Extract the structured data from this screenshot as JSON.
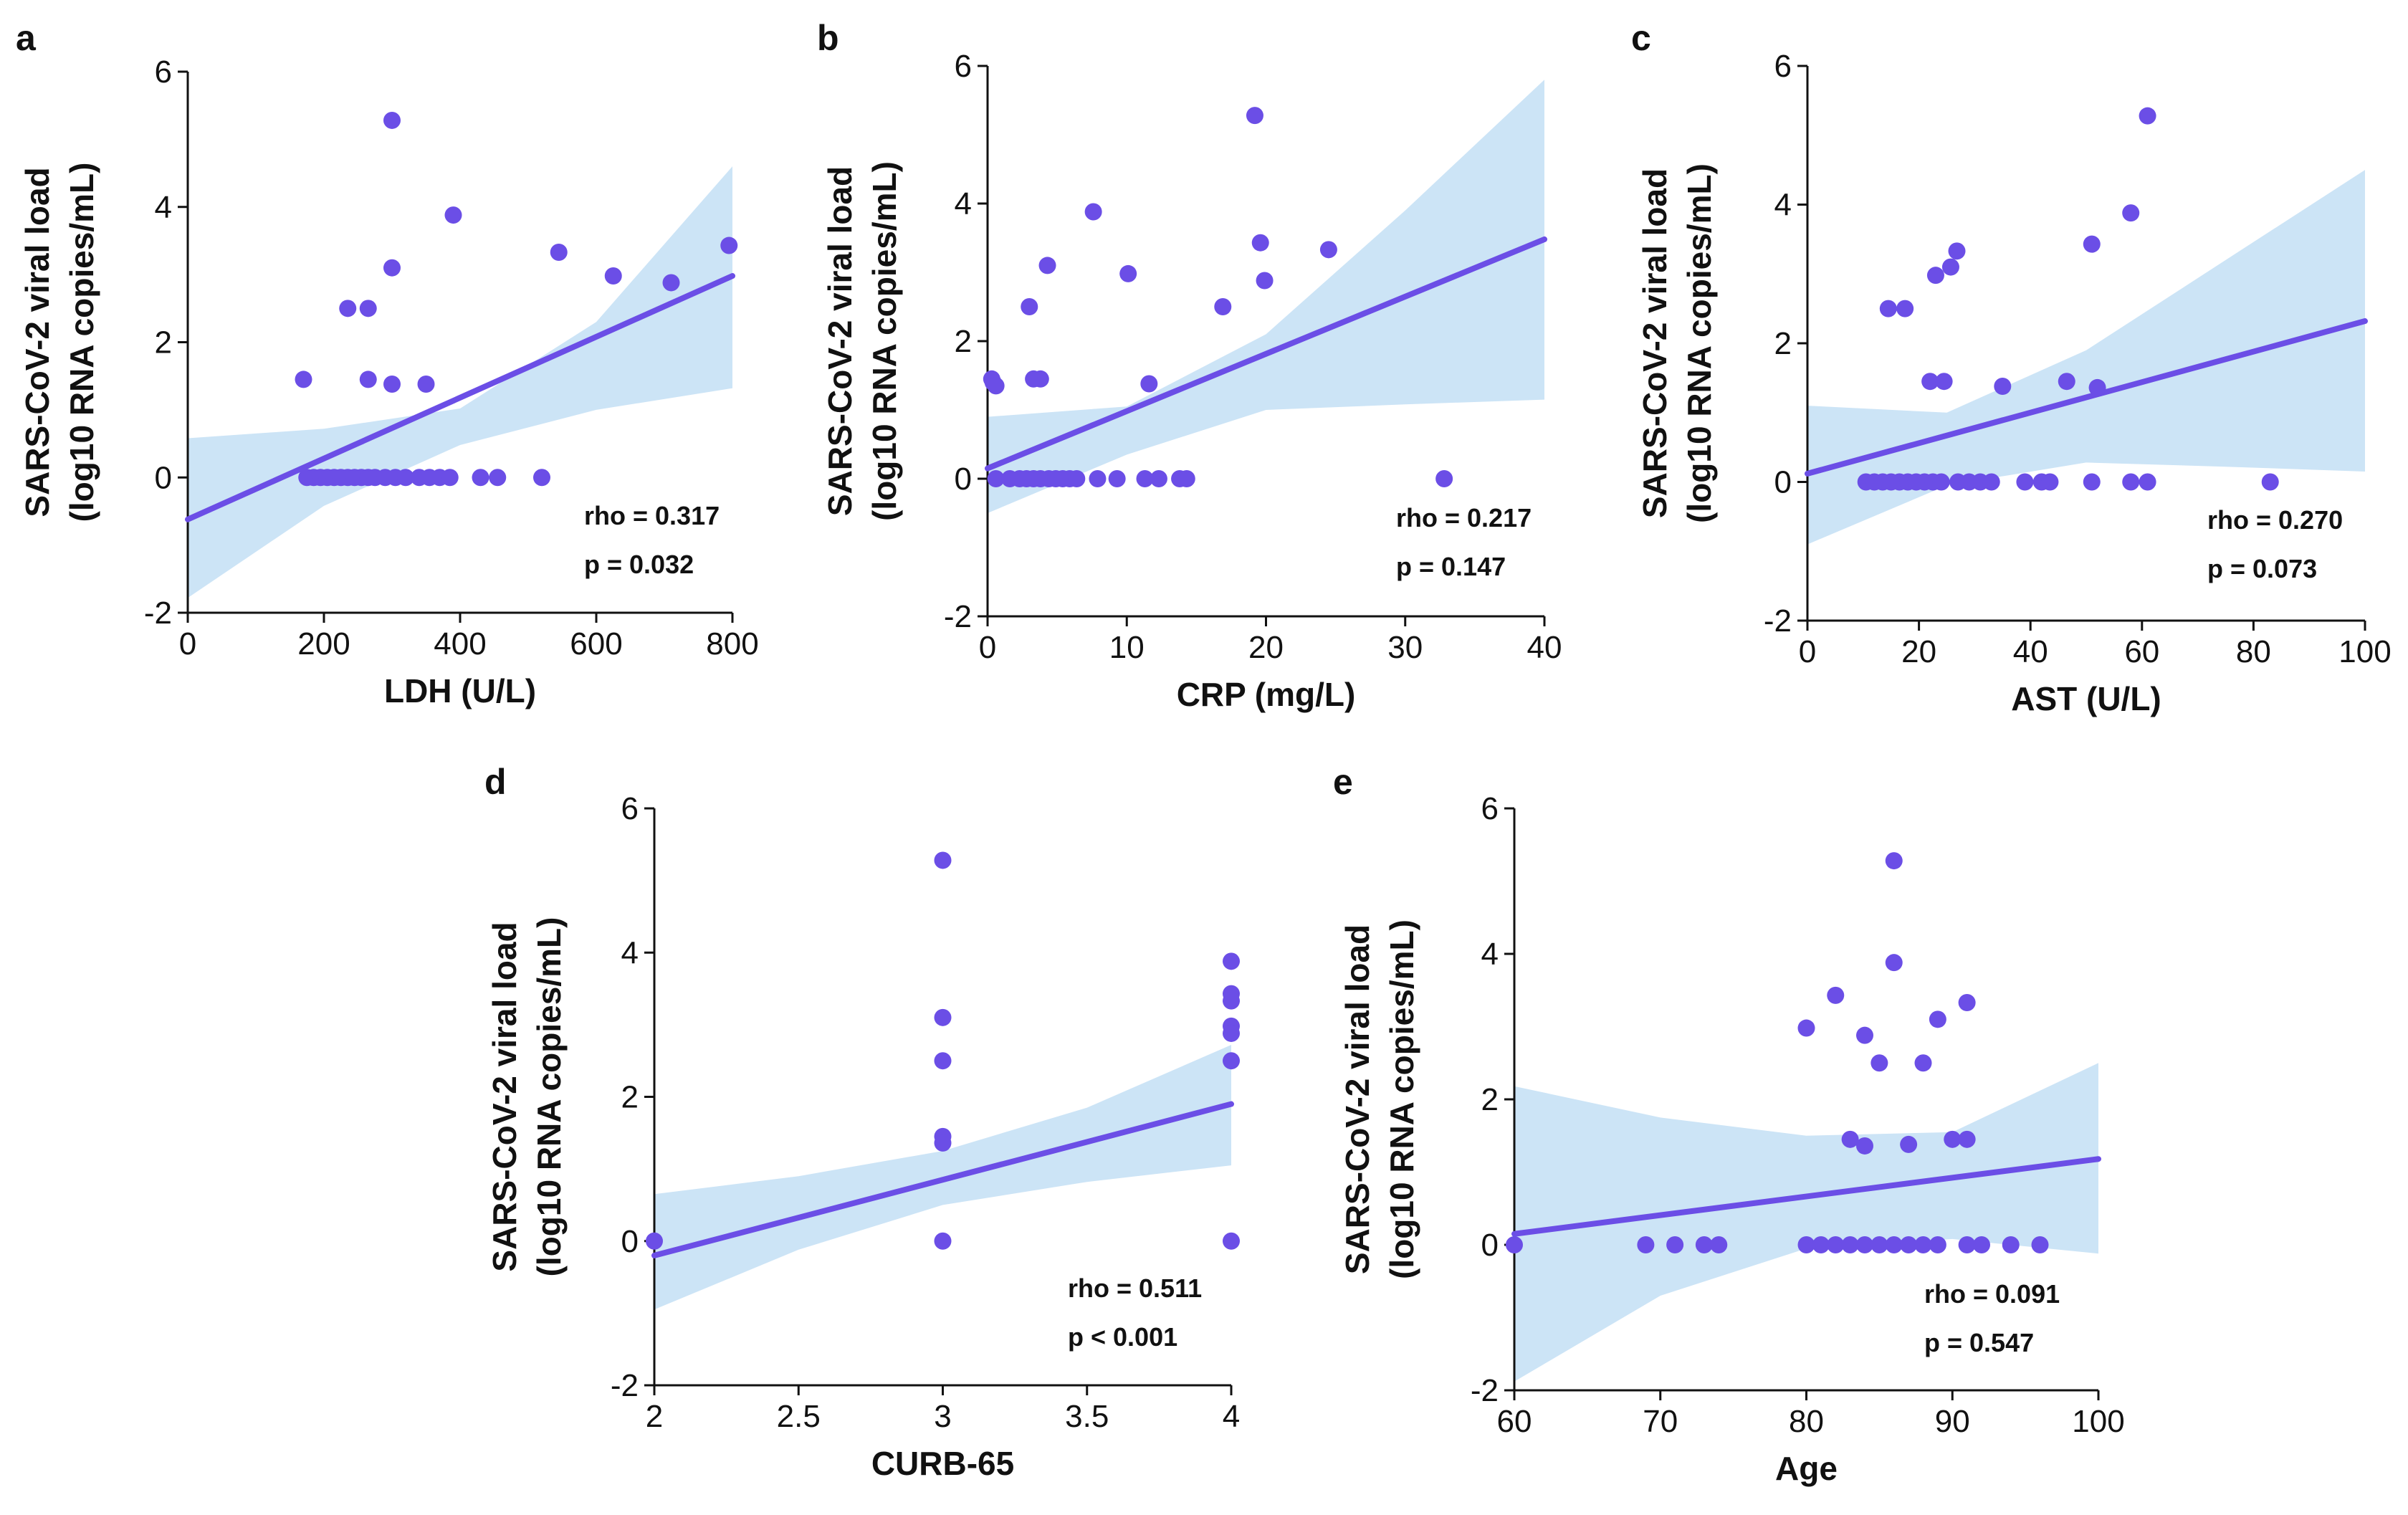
{
  "figure": {
    "description_panels": [
      "a",
      "b",
      "c",
      "d",
      "e"
    ]
  },
  "chart_data": [
    {
      "type": "scatter",
      "panel": "a",
      "xlabel": "LDH (U/L)",
      "ylabel_line1": "SARS-CoV-2 viral load",
      "ylabel_line2": "(log10 RNA copies/mL)",
      "xlim": [
        0,
        800
      ],
      "ylim": [
        -2,
        6
      ],
      "xticks": [
        "0",
        "200",
        "400",
        "600",
        "800"
      ],
      "yticks": [
        "-2",
        "0",
        "2",
        "4",
        "6"
      ],
      "accent_color": "#6b4ee6",
      "band_color": "#cce4f6",
      "regression": {
        "x": [
          0,
          800
        ],
        "y": [
          -0.62,
          2.98
        ]
      },
      "ci_upper": {
        "x": [
          0,
          200,
          400,
          600,
          800
        ],
        "y": [
          0.58,
          0.72,
          1.02,
          2.3,
          4.6
        ]
      },
      "ci_lower": {
        "x": [
          0,
          200,
          400,
          600,
          800
        ],
        "y": [
          -1.78,
          -0.42,
          0.48,
          1.0,
          1.32
        ]
      },
      "points": [
        {
          "x": 170,
          "y": 1.45
        },
        {
          "x": 235,
          "y": 2.5
        },
        {
          "x": 265,
          "y": 2.5
        },
        {
          "x": 265,
          "y": 1.45
        },
        {
          "x": 300,
          "y": 5.28
        },
        {
          "x": 300,
          "y": 3.1
        },
        {
          "x": 300,
          "y": 1.38
        },
        {
          "x": 350,
          "y": 1.38
        },
        {
          "x": 390,
          "y": 3.88
        },
        {
          "x": 545,
          "y": 3.33
        },
        {
          "x": 625,
          "y": 2.98
        },
        {
          "x": 710,
          "y": 2.88
        },
        {
          "x": 795,
          "y": 3.43
        },
        {
          "x": 175,
          "y": 0
        },
        {
          "x": 185,
          "y": 0
        },
        {
          "x": 195,
          "y": 0
        },
        {
          "x": 205,
          "y": 0
        },
        {
          "x": 215,
          "y": 0
        },
        {
          "x": 225,
          "y": 0
        },
        {
          "x": 235,
          "y": 0
        },
        {
          "x": 245,
          "y": 0
        },
        {
          "x": 255,
          "y": 0
        },
        {
          "x": 265,
          "y": 0
        },
        {
          "x": 275,
          "y": 0
        },
        {
          "x": 290,
          "y": 0
        },
        {
          "x": 305,
          "y": 0
        },
        {
          "x": 320,
          "y": 0
        },
        {
          "x": 340,
          "y": 0
        },
        {
          "x": 355,
          "y": 0
        },
        {
          "x": 370,
          "y": 0
        },
        {
          "x": 385,
          "y": 0
        },
        {
          "x": 430,
          "y": 0
        },
        {
          "x": 455,
          "y": 0
        },
        {
          "x": 520,
          "y": 0
        }
      ],
      "stats": {
        "rho": "rho = 0.317",
        "p": "p = 0.032"
      }
    },
    {
      "type": "scatter",
      "panel": "b",
      "xlabel": "CRP (mg/L)",
      "ylabel_line1": "SARS-CoV-2 viral load",
      "ylabel_line2": "(log10 RNA copies/mL)",
      "xlim": [
        0,
        40
      ],
      "ylim": [
        -2,
        6
      ],
      "xticks": [
        "0",
        "10",
        "20",
        "30",
        "40"
      ],
      "yticks": [
        "-2",
        "0",
        "2",
        "4",
        "6"
      ],
      "accent_color": "#6b4ee6",
      "band_color": "#cce4f6",
      "regression": {
        "x": [
          0,
          40
        ],
        "y": [
          0.15,
          3.48
        ]
      },
      "ci_upper": {
        "x": [
          0,
          10,
          20,
          30,
          40
        ],
        "y": [
          0.9,
          1.05,
          2.1,
          3.9,
          5.8
        ]
      },
      "ci_lower": {
        "x": [
          0,
          10,
          20,
          30,
          40
        ],
        "y": [
          -0.5,
          0.35,
          1.0,
          1.08,
          1.15
        ]
      },
      "points": [
        {
          "x": 0.3,
          "y": 1.45
        },
        {
          "x": 0.4,
          "y": 1.4
        },
        {
          "x": 0.6,
          "y": 1.35
        },
        {
          "x": 3,
          "y": 2.5
        },
        {
          "x": 3.3,
          "y": 1.45
        },
        {
          "x": 3.8,
          "y": 1.45
        },
        {
          "x": 4.3,
          "y": 3.1
        },
        {
          "x": 7.6,
          "y": 3.88
        },
        {
          "x": 10.1,
          "y": 2.98
        },
        {
          "x": 11.6,
          "y": 1.38
        },
        {
          "x": 16.9,
          "y": 2.5
        },
        {
          "x": 19.2,
          "y": 5.28
        },
        {
          "x": 19.6,
          "y": 3.43
        },
        {
          "x": 19.9,
          "y": 2.88
        },
        {
          "x": 24.5,
          "y": 3.33
        },
        {
          "x": 32.8,
          "y": 0
        },
        {
          "x": 0.6,
          "y": 0
        },
        {
          "x": 1.6,
          "y": 0
        },
        {
          "x": 2.3,
          "y": 0
        },
        {
          "x": 2.8,
          "y": 0
        },
        {
          "x": 3.3,
          "y": 0
        },
        {
          "x": 3.8,
          "y": 0
        },
        {
          "x": 4.4,
          "y": 0
        },
        {
          "x": 4.9,
          "y": 0
        },
        {
          "x": 5.4,
          "y": 0
        },
        {
          "x": 5.9,
          "y": 0
        },
        {
          "x": 6.4,
          "y": 0
        },
        {
          "x": 7.9,
          "y": 0
        },
        {
          "x": 9.3,
          "y": 0
        },
        {
          "x": 11.3,
          "y": 0
        },
        {
          "x": 12.3,
          "y": 0
        },
        {
          "x": 13.8,
          "y": 0
        },
        {
          "x": 14.3,
          "y": 0
        }
      ],
      "stats": {
        "rho": "rho = 0.217",
        "p": "p = 0.147"
      }
    },
    {
      "type": "scatter",
      "panel": "c",
      "xlabel": "AST (U/L)",
      "ylabel_line1": "SARS-CoV-2 viral load",
      "ylabel_line2": "(log10 RNA copies/mL)",
      "xlim": [
        0,
        100
      ],
      "ylim": [
        -2,
        6
      ],
      "xticks": [
        "0",
        "20",
        "40",
        "60",
        "80",
        "100"
      ],
      "yticks": [
        "-2",
        "0",
        "2",
        "4",
        "6"
      ],
      "accent_color": "#6b4ee6",
      "band_color": "#cce4f6",
      "regression": {
        "x": [
          0,
          100
        ],
        "y": [
          0.12,
          2.32
        ]
      },
      "ci_upper": {
        "x": [
          0,
          25,
          50,
          75,
          100
        ],
        "y": [
          1.1,
          1.0,
          1.9,
          3.2,
          4.5
        ]
      },
      "ci_lower": {
        "x": [
          0,
          25,
          50,
          75,
          100
        ],
        "y": [
          -0.9,
          -0.05,
          0.28,
          0.22,
          0.15
        ]
      },
      "points": [
        {
          "x": 14.5,
          "y": 2.5
        },
        {
          "x": 17.5,
          "y": 2.5
        },
        {
          "x": 23,
          "y": 2.98
        },
        {
          "x": 25.7,
          "y": 3.1
        },
        {
          "x": 26.8,
          "y": 3.33
        },
        {
          "x": 22,
          "y": 1.45
        },
        {
          "x": 24.5,
          "y": 1.45
        },
        {
          "x": 35,
          "y": 1.38
        },
        {
          "x": 46.5,
          "y": 1.45
        },
        {
          "x": 51,
          "y": 3.43
        },
        {
          "x": 52,
          "y": 1.36
        },
        {
          "x": 58,
          "y": 3.88
        },
        {
          "x": 61,
          "y": 5.28
        },
        {
          "x": 10.5,
          "y": 0
        },
        {
          "x": 12,
          "y": 0
        },
        {
          "x": 13.5,
          "y": 0
        },
        {
          "x": 15,
          "y": 0
        },
        {
          "x": 16.5,
          "y": 0
        },
        {
          "x": 18,
          "y": 0
        },
        {
          "x": 19.5,
          "y": 0
        },
        {
          "x": 21,
          "y": 0
        },
        {
          "x": 22.5,
          "y": 0
        },
        {
          "x": 24,
          "y": 0
        },
        {
          "x": 27,
          "y": 0
        },
        {
          "x": 29,
          "y": 0
        },
        {
          "x": 31,
          "y": 0
        },
        {
          "x": 33,
          "y": 0
        },
        {
          "x": 39,
          "y": 0
        },
        {
          "x": 42,
          "y": 0
        },
        {
          "x": 43.5,
          "y": 0
        },
        {
          "x": 51,
          "y": 0
        },
        {
          "x": 58,
          "y": 0
        },
        {
          "x": 61,
          "y": 0
        },
        {
          "x": 83,
          "y": 0
        }
      ],
      "stats": {
        "rho": "rho = 0.270",
        "p": "p = 0.073"
      }
    },
    {
      "type": "scatter",
      "panel": "d",
      "xlabel": "CURB-65",
      "ylabel_line1": "SARS-CoV-2 viral load",
      "ylabel_line2": "(log10 RNA copies/mL)",
      "xlim": [
        2,
        4
      ],
      "ylim": [
        -2,
        6
      ],
      "xticks": [
        "2",
        "2.5",
        "3",
        "3.5",
        "4"
      ],
      "yticks": [
        "-2",
        "0",
        "2",
        "4",
        "6"
      ],
      "accent_color": "#6b4ee6",
      "band_color": "#cce4f6",
      "regression": {
        "x": [
          2,
          4
        ],
        "y": [
          -0.2,
          1.9
        ]
      },
      "ci_upper": {
        "x": [
          2,
          2.5,
          3,
          3.5,
          4
        ],
        "y": [
          0.65,
          0.9,
          1.25,
          1.85,
          2.72
        ]
      },
      "ci_lower": {
        "x": [
          2,
          2.5,
          3,
          3.5,
          4
        ],
        "y": [
          -0.95,
          -0.12,
          0.5,
          0.82,
          1.05
        ]
      },
      "points": [
        {
          "x": 2,
          "y": 0
        },
        {
          "x": 3,
          "y": 5.28
        },
        {
          "x": 3,
          "y": 3.1
        },
        {
          "x": 3,
          "y": 2.5
        },
        {
          "x": 3,
          "y": 1.45
        },
        {
          "x": 3,
          "y": 1.36
        },
        {
          "x": 3,
          "y": 0
        },
        {
          "x": 4,
          "y": 3.88
        },
        {
          "x": 4,
          "y": 3.43
        },
        {
          "x": 4,
          "y": 3.33
        },
        {
          "x": 4,
          "y": 2.98
        },
        {
          "x": 4,
          "y": 2.88
        },
        {
          "x": 4,
          "y": 2.5
        },
        {
          "x": 4,
          "y": 0
        }
      ],
      "stats": {
        "rho": "rho = 0.511",
        "p": "p < 0.001"
      }
    },
    {
      "type": "scatter",
      "panel": "e",
      "xlabel": "Age",
      "ylabel_line1": "SARS-CoV-2 viral load",
      "ylabel_line2": "(log10 RNA copies/mL)",
      "xlim": [
        60,
        100
      ],
      "ylim": [
        -2,
        6
      ],
      "xticks": [
        "60",
        "70",
        "80",
        "90",
        "100"
      ],
      "yticks": [
        "-2",
        "0",
        "2",
        "4",
        "6"
      ],
      "accent_color": "#6b4ee6",
      "band_color": "#cce4f6",
      "regression": {
        "x": [
          60,
          100
        ],
        "y": [
          0.15,
          1.18
        ]
      },
      "ci_upper": {
        "x": [
          60,
          70,
          80,
          90,
          100
        ],
        "y": [
          2.18,
          1.75,
          1.5,
          1.55,
          2.5
        ]
      },
      "ci_lower": {
        "x": [
          60,
          70,
          80,
          90,
          100
        ],
        "y": [
          -1.88,
          -0.7,
          -0.05,
          0.08,
          -0.12
        ]
      },
      "points": [
        {
          "x": 60,
          "y": 0
        },
        {
          "x": 69,
          "y": 0
        },
        {
          "x": 71,
          "y": 0
        },
        {
          "x": 73,
          "y": 0
        },
        {
          "x": 74,
          "y": 0
        },
        {
          "x": 80,
          "y": 2.98
        },
        {
          "x": 82,
          "y": 3.43
        },
        {
          "x": 83,
          "y": 1.45
        },
        {
          "x": 84,
          "y": 2.88
        },
        {
          "x": 84,
          "y": 1.36
        },
        {
          "x": 85,
          "y": 2.5
        },
        {
          "x": 86,
          "y": 5.28
        },
        {
          "x": 86,
          "y": 3.88
        },
        {
          "x": 87,
          "y": 1.38
        },
        {
          "x": 88,
          "y": 2.5
        },
        {
          "x": 89,
          "y": 3.1
        },
        {
          "x": 90,
          "y": 1.45
        },
        {
          "x": 91,
          "y": 3.33
        },
        {
          "x": 91,
          "y": 1.45
        },
        {
          "x": 80,
          "y": 0
        },
        {
          "x": 81,
          "y": 0
        },
        {
          "x": 82,
          "y": 0
        },
        {
          "x": 83,
          "y": 0
        },
        {
          "x": 84,
          "y": 0
        },
        {
          "x": 85,
          "y": 0
        },
        {
          "x": 86,
          "y": 0
        },
        {
          "x": 87,
          "y": 0
        },
        {
          "x": 88,
          "y": 0
        },
        {
          "x": 89,
          "y": 0
        },
        {
          "x": 91,
          "y": 0
        },
        {
          "x": 92,
          "y": 0
        },
        {
          "x": 94,
          "y": 0
        },
        {
          "x": 96,
          "y": 0
        }
      ],
      "stats": {
        "rho": "rho = 0.091",
        "p": "p = 0.547"
      }
    }
  ]
}
